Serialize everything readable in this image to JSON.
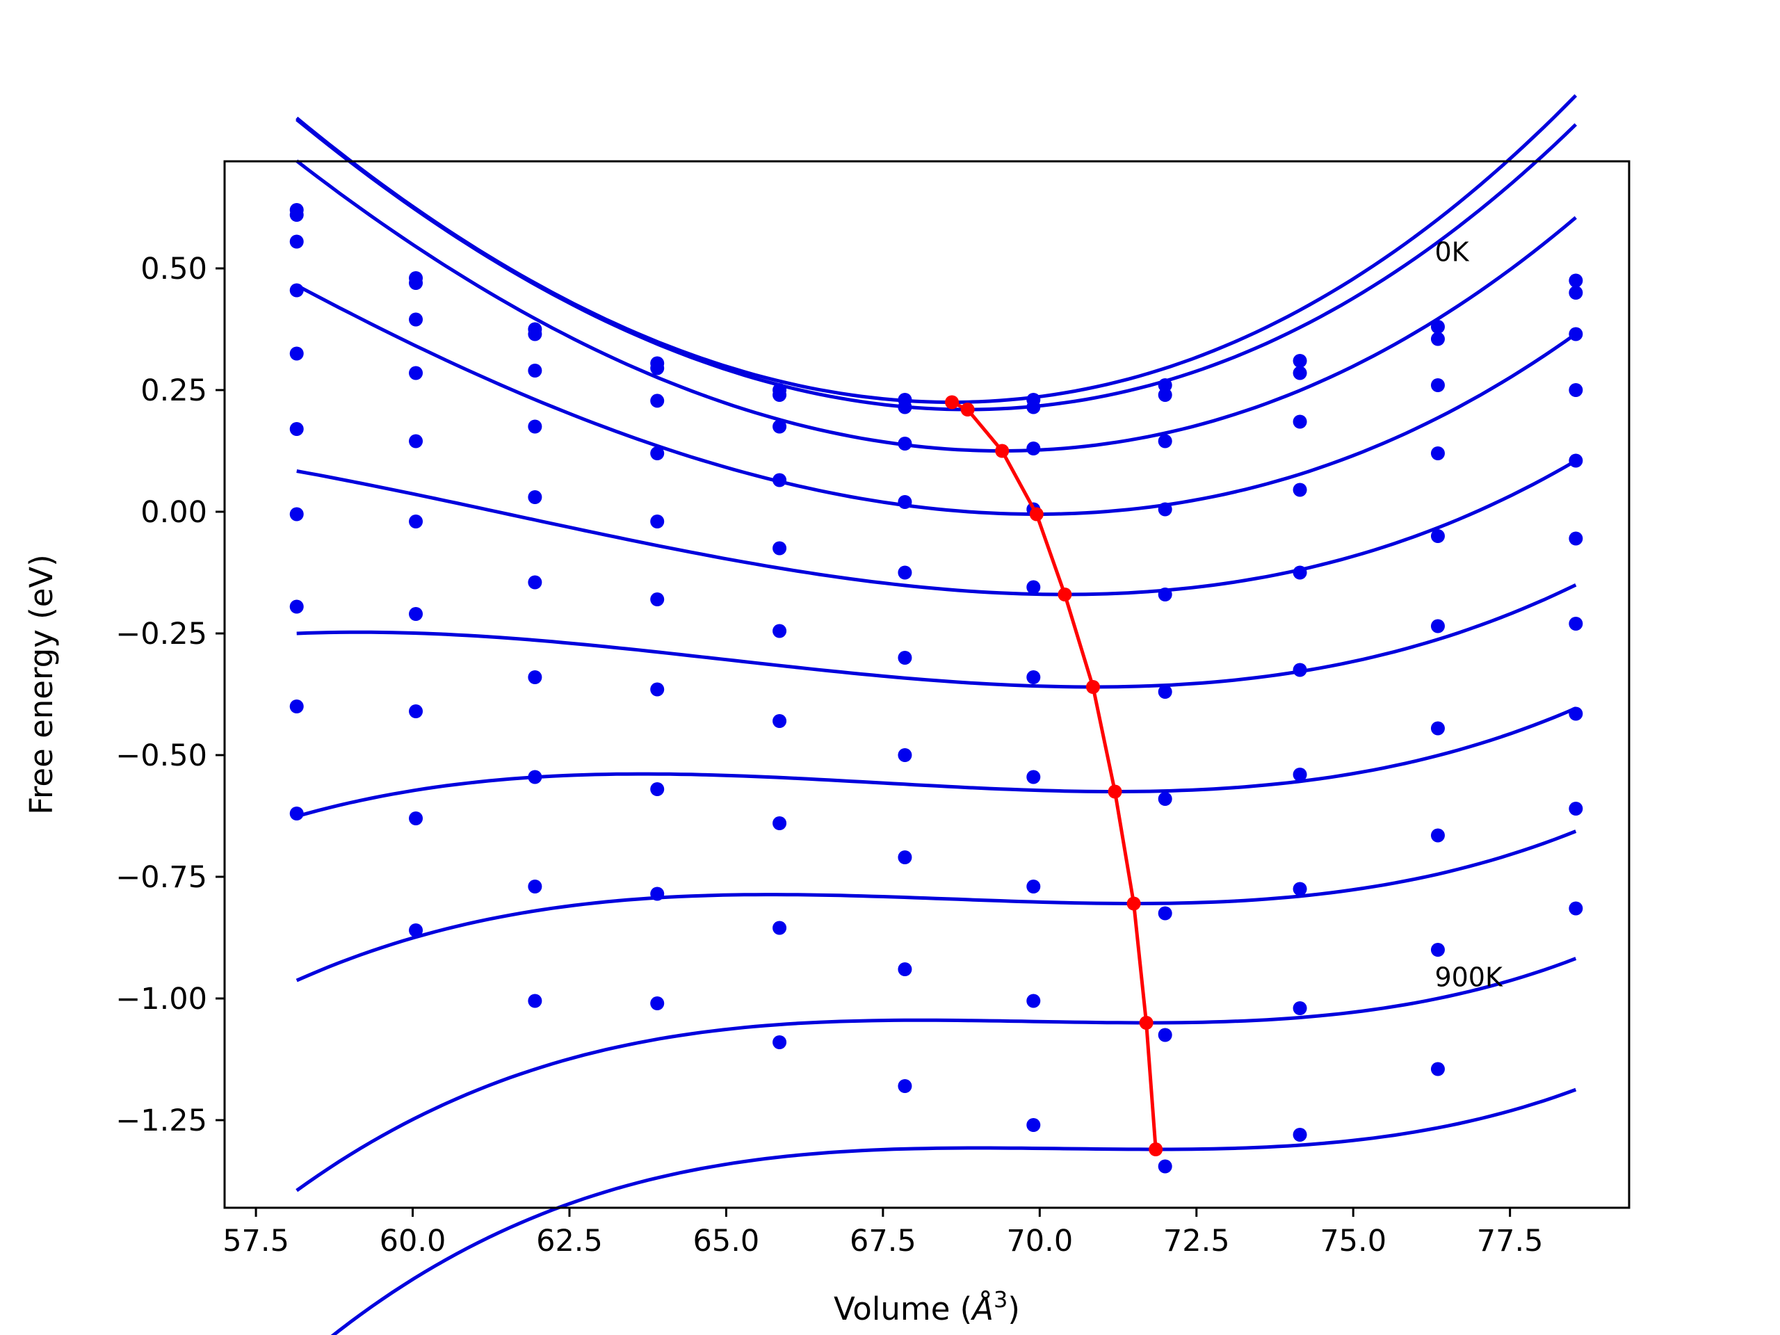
{
  "chart_data": {
    "type": "line",
    "title": "",
    "xlabel": "Volume (",
    "xlabel_math": "Å",
    "xlabel_exp": "3",
    "xlabel_close": ")",
    "ylabel": "Free energy (eV)",
    "xlim": [
      57.0,
      79.4
    ],
    "ylim": [
      -1.43,
      0.72
    ],
    "x_ticks": [
      57.5,
      60.0,
      62.5,
      65.0,
      67.5,
      70.0,
      72.5,
      75.0,
      77.5
    ],
    "x_tick_labels": [
      "57.5",
      "60.0",
      "62.5",
      "65.0",
      "67.5",
      "70.0",
      "72.5",
      "75.0",
      "77.5"
    ],
    "y_ticks": [
      0.5,
      0.25,
      0.0,
      -0.25,
      -0.5,
      -0.75,
      -1.0,
      -1.25
    ],
    "y_tick_labels": [
      "0.50",
      "0.25",
      "0.00",
      "−0.25",
      "−0.50",
      "−0.75",
      "−1.00",
      "−1.25"
    ],
    "grid": false,
    "legend": "none",
    "colors": {
      "points": "#0000ee",
      "fit": "#0000dd",
      "min_path": "#ff0000"
    },
    "volumes": [
      58.15,
      60.05,
      61.95,
      63.9,
      65.85,
      67.85,
      69.9,
      72.0,
      74.15,
      76.35,
      78.55
    ],
    "annotations": [
      {
        "text": "0K",
        "x": 76.3,
        "y": 0.535
      },
      {
        "text": "900K",
        "x": 76.3,
        "y": -0.955
      }
    ],
    "series": [
      {
        "points": [
          0.62,
          0.48,
          0.375,
          0.305,
          0.25,
          0.23,
          0.23,
          0.26,
          0.31,
          0.38,
          0.475
        ],
        "fit": {
          "v0": 68.6,
          "e0": 0.225,
          "a": 0.00587,
          "b": 5e-05
        }
      },
      {
        "points": [
          0.61,
          0.47,
          0.365,
          0.295,
          0.24,
          0.215,
          0.215,
          0.24,
          0.285,
          0.355,
          0.45
        ],
        "fit": {
          "v0": 68.85,
          "e0": 0.21,
          "a": 0.00574,
          "b": 5e-05
        }
      },
      {
        "points": [
          0.555,
          0.395,
          0.29,
          0.228,
          0.175,
          0.14,
          0.13,
          0.145,
          0.185,
          0.26,
          0.365
        ],
        "fit": {
          "v0": 69.4,
          "e0": 0.125,
          "a": 0.00527,
          "b": 5e-05
        }
      },
      {
        "points": [
          0.455,
          0.285,
          0.175,
          0.12,
          0.065,
          0.02,
          0.005,
          0.005,
          0.045,
          0.12,
          0.25
        ],
        "fit": {
          "v0": 69.95,
          "e0": -0.005,
          "a": 0.00432,
          "b": 8e-05
        }
      },
      {
        "points": [
          0.325,
          0.145,
          0.03,
          -0.02,
          -0.075,
          -0.125,
          -0.155,
          -0.17,
          -0.125,
          -0.05,
          0.105
        ],
        "fit": {
          "v0": 70.4,
          "e0": -0.17,
          "a": 0.00316,
          "b": 0.00012
        }
      },
      {
        "points": [
          0.17,
          -0.02,
          -0.145,
          -0.18,
          -0.245,
          -0.3,
          -0.34,
          -0.37,
          -0.325,
          -0.235,
          -0.055
        ],
        "fit": {
          "v0": 70.85,
          "e0": -0.36,
          "a": 0.00246,
          "b": 0.00014
        }
      },
      {
        "points": [
          -0.005,
          -0.21,
          -0.34,
          -0.365,
          -0.43,
          -0.5,
          -0.545,
          -0.59,
          -0.54,
          -0.445,
          -0.23
        ],
        "fit": {
          "v0": 71.2,
          "e0": -0.575,
          "a": 0.00192,
          "b": 0.00017
        }
      },
      {
        "points": [
          -0.195,
          -0.41,
          -0.545,
          -0.57,
          -0.64,
          -0.71,
          -0.77,
          -0.825,
          -0.775,
          -0.665,
          -0.415
        ],
        "fit": {
          "v0": 71.5,
          "e0": -0.805,
          "a": 0.00165,
          "b": 0.00019
        }
      },
      {
        "points": [
          -0.4,
          -0.63,
          -0.77,
          -0.785,
          -0.855,
          -0.94,
          -1.005,
          -1.075,
          -1.02,
          -0.9,
          -0.61
        ],
        "fit": {
          "v0": 71.7,
          "e0": -1.05,
          "a": 0.00124,
          "b": 0.00023
        }
      },
      {
        "points": [
          -0.62,
          -0.86,
          -1.005,
          -1.01,
          -1.09,
          -1.18,
          -1.26,
          -1.345,
          -1.28,
          -1.145,
          -0.815
        ],
        "fit": {
          "v0": 71.85,
          "e0": -1.31,
          "a": 0.00106,
          "b": 0.00025
        }
      }
    ],
    "equilibrium_path": {
      "x": [
        68.6,
        68.85,
        69.4,
        69.95,
        70.4,
        70.85,
        71.2,
        71.5,
        71.7,
        71.85
      ],
      "y": [
        0.225,
        0.21,
        0.125,
        -0.005,
        -0.17,
        -0.36,
        -0.575,
        -0.805,
        -1.05,
        -1.31
      ]
    }
  }
}
